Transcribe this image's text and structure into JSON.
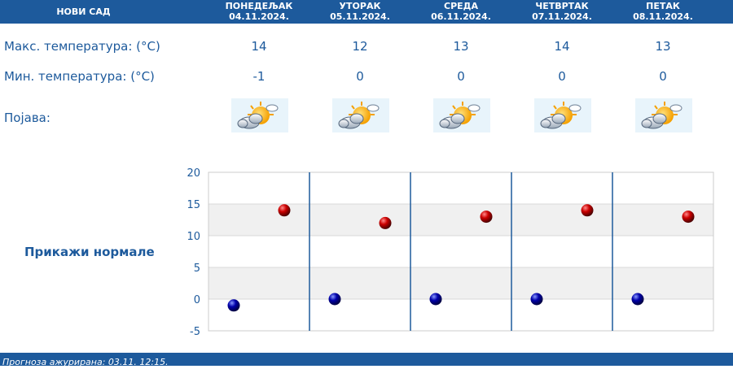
{
  "header": {
    "city": "НОВИ САД",
    "days": [
      {
        "name": "ПОНЕДЕЉАК",
        "date": "04.11.2024."
      },
      {
        "name": "УТОРАК",
        "date": "05.11.2024."
      },
      {
        "name": "СРЕДА",
        "date": "06.11.2024."
      },
      {
        "name": "ЧЕТВРТАК",
        "date": "07.11.2024."
      },
      {
        "name": "ПЕТАК",
        "date": "08.11.2024."
      }
    ]
  },
  "rows": {
    "max_label": "Макс. температура: (°C)",
    "min_label": "Мин. температура: (°C)",
    "phenomenon_label": "Појава:"
  },
  "max_temps": [
    "14",
    "12",
    "13",
    "14",
    "13"
  ],
  "min_temps": [
    "-1",
    "0",
    "0",
    "0",
    "0"
  ],
  "icons": [
    "sun-cloud-icon",
    "sun-cloud-icon",
    "sun-cloud-icon",
    "sun-cloud-icon",
    "sun-cloud-icon"
  ],
  "show_normals": "Прикажи нормале",
  "footer": {
    "updated": "Прогноза ажурирана:  03.11. 12:15."
  },
  "colors": {
    "primary": "#1d5a9c",
    "max_marker": "#cc0000",
    "min_marker": "#0000aa",
    "band": "#f0f0f0"
  },
  "chart_data": {
    "type": "scatter",
    "categories": [
      "04.11.2024.",
      "05.11.2024.",
      "06.11.2024.",
      "07.11.2024.",
      "08.11.2024."
    ],
    "series": [
      {
        "values": [
          -1,
          0,
          0,
          0,
          0
        ]
      },
      {
        "values": [
          14,
          12,
          13,
          14,
          13
        ]
      }
    ],
    "ylim": [
      -5,
      20
    ],
    "yticks": [
      "20",
      "15",
      "10",
      "5",
      "0",
      "-5"
    ],
    "grid": true,
    "title": "",
    "xlabel": "",
    "ylabel": ""
  }
}
